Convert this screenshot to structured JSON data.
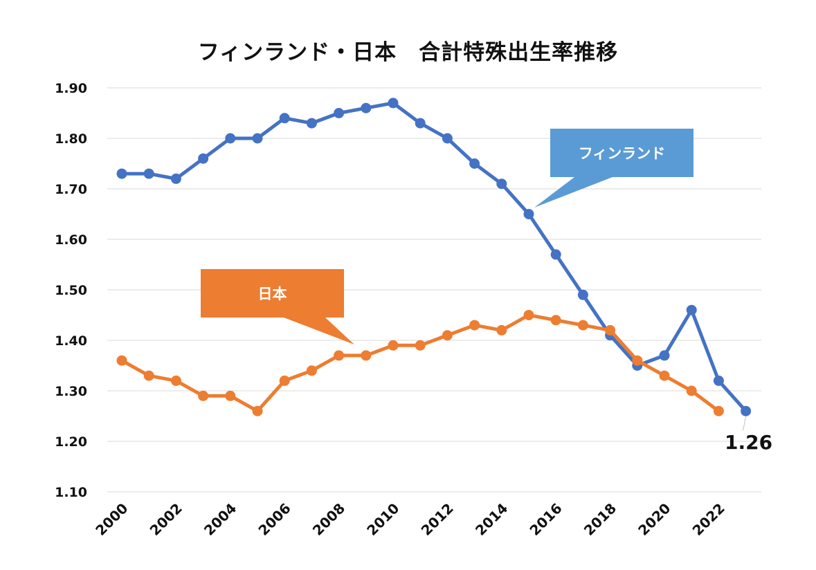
{
  "chart_data": {
    "type": "line",
    "title": "フィンランド・日本　合計特殊出生率推移",
    "xlabel": "",
    "ylabel": "",
    "ylim": [
      1.1,
      1.9
    ],
    "yticks": [
      "1.10",
      "1.20",
      "1.30",
      "1.40",
      "1.50",
      "1.60",
      "1.70",
      "1.80",
      "1.90"
    ],
    "x": [
      2000,
      2001,
      2002,
      2003,
      2004,
      2005,
      2006,
      2007,
      2008,
      2009,
      2010,
      2011,
      2012,
      2013,
      2014,
      2015,
      2016,
      2017,
      2018,
      2019,
      2020,
      2021,
      2022,
      2023
    ],
    "xtick_labels": [
      "2000",
      "2002",
      "2004",
      "2006",
      "2008",
      "2010",
      "2012",
      "2014",
      "2016",
      "2018",
      "2020",
      "2022"
    ],
    "grid": true,
    "series": [
      {
        "name": "フィンランド",
        "color": "#4472C4",
        "callout_color": "#5B9BD5",
        "values": [
          1.73,
          1.73,
          1.72,
          1.76,
          1.8,
          1.8,
          1.84,
          1.83,
          1.85,
          1.86,
          1.87,
          1.83,
          1.8,
          1.75,
          1.71,
          1.65,
          1.57,
          1.49,
          1.41,
          1.35,
          1.37,
          1.46,
          1.32,
          1.26
        ]
      },
      {
        "name": "日本",
        "color": "#ED7D31",
        "callout_color": "#ED7D31",
        "values": [
          1.36,
          1.33,
          1.32,
          1.29,
          1.29,
          1.26,
          1.32,
          1.34,
          1.37,
          1.37,
          1.39,
          1.39,
          1.41,
          1.43,
          1.42,
          1.45,
          1.44,
          1.43,
          1.42,
          1.36,
          1.33,
          1.3,
          1.26,
          null
        ]
      }
    ],
    "annotations": [
      {
        "text": "1.26",
        "series": "フィンランド",
        "x": 2023
      }
    ]
  }
}
